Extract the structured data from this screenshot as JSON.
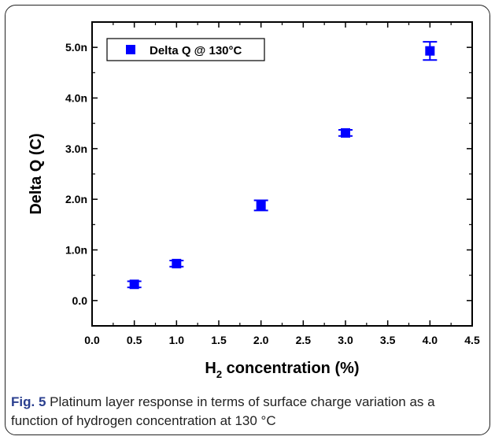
{
  "chart_data": {
    "type": "scatter",
    "ylabel": "Delta Q (C)",
    "xlabel_main": "H",
    "xlabel_sub": "2",
    "xlabel_rest": " concentration (%)",
    "xlim": [
      0.0,
      4.5
    ],
    "ylim": [
      -0.5,
      5.5
    ],
    "xticks": [
      "0.0",
      "0.5",
      "1.0",
      "1.5",
      "2.0",
      "2.5",
      "3.0",
      "3.5",
      "4.0",
      "4.5"
    ],
    "xtick_values": [
      0.0,
      0.5,
      1.0,
      1.5,
      2.0,
      2.5,
      3.0,
      3.5,
      4.0,
      4.5
    ],
    "yticks": [
      "0.0",
      "1.0n",
      "2.0n",
      "3.0n",
      "4.0n",
      "5.0n"
    ],
    "ytick_values": [
      0.0,
      1.0,
      2.0,
      3.0,
      4.0,
      5.0
    ],
    "grid": false,
    "legend_position": "top-left",
    "series": [
      {
        "name": "Delta Q @ 130°C",
        "color": "#0000ff",
        "marker": "square",
        "points": [
          {
            "x": 0.5,
            "y": 0.32,
            "err": 0.06
          },
          {
            "x": 1.0,
            "y": 0.73,
            "err": 0.06
          },
          {
            "x": 2.0,
            "y": 1.88,
            "err": 0.1
          },
          {
            "x": 3.0,
            "y": 3.31,
            "err": 0.06
          },
          {
            "x": 4.0,
            "y": 4.93,
            "err": 0.18
          }
        ]
      }
    ]
  },
  "caption": {
    "label": "Fig. 5",
    "text": " Platinum layer response in terms of surface charge variation as a function of hydrogen concentration at 130 °C"
  }
}
